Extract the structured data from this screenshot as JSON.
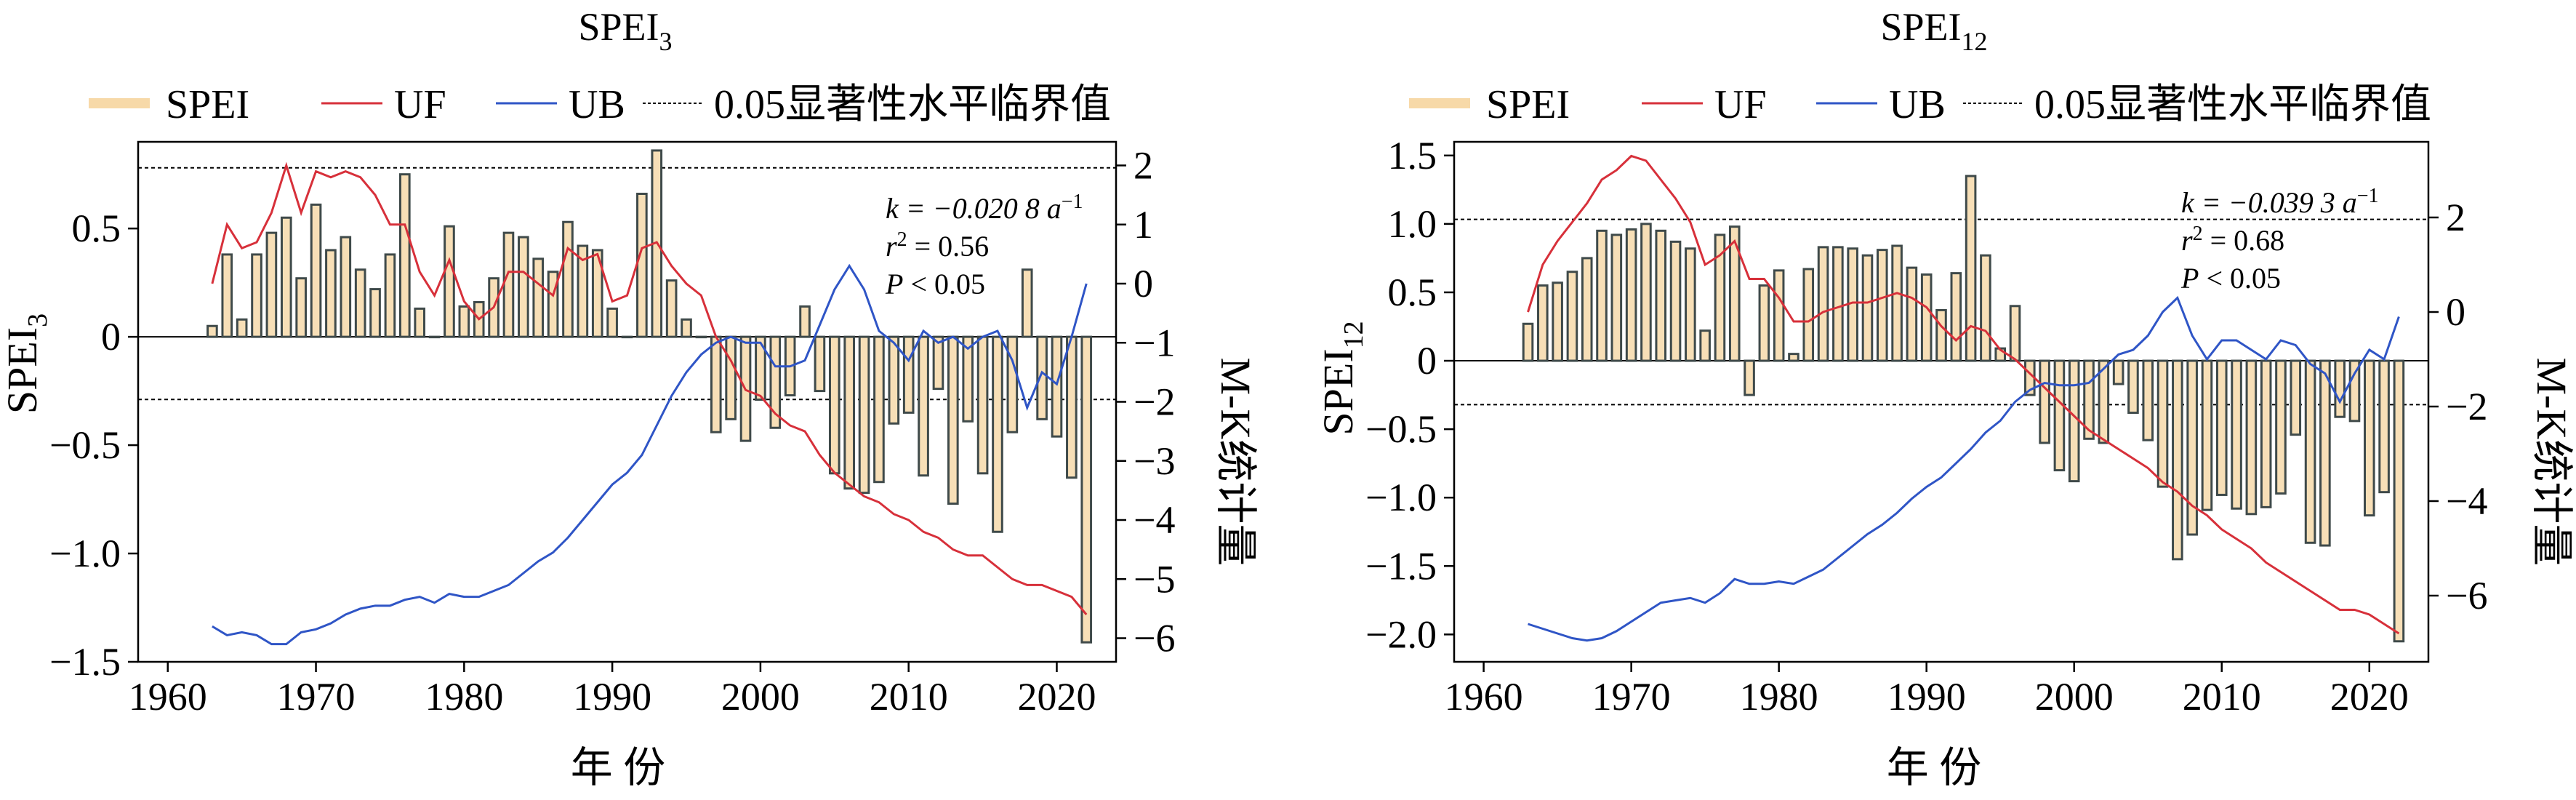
{
  "chart_data": [
    {
      "type": "bar",
      "title_main": "SPEI",
      "title_sub": "3",
      "xlabel": "年 份",
      "ylabel_main": "SPEI",
      "ylabel_sub": "3",
      "ylabel2": "M-K统计量",
      "xlim": [
        1958,
        2024
      ],
      "ylim": [
        -1.5,
        0.9
      ],
      "y2lim": [
        -6.4,
        2.4
      ],
      "xticks": [
        1960,
        1970,
        1980,
        1990,
        2000,
        2010,
        2020
      ],
      "yticks": [
        0.5,
        0,
        -0.5,
        -1.0,
        -1.5
      ],
      "ytick_labels": [
        "0.5",
        "0",
        "−0.5",
        "−1.0",
        "−1.5"
      ],
      "y2ticks": [
        2,
        1,
        0,
        -1,
        -2,
        -3,
        -4,
        -5,
        -6
      ],
      "y2tick_labels": [
        "2",
        "1",
        "0",
        "−1",
        "−2",
        "−3",
        "−4",
        "−5",
        "−6"
      ],
      "critical_values": [
        1.96,
        -1.96
      ],
      "legend": [
        "SPEI",
        "UF",
        "UB",
        "0.05显著性水平临界值"
      ],
      "annotation": {
        "k": "k = −0.020 8 a",
        "k_sup": "−1",
        "r2": "r",
        "r2_sup": "2",
        "r2_val": " = 0.56",
        "p": "P",
        "p_val": " < 0.05"
      },
      "years": [
        1963,
        1964,
        1965,
        1966,
        1967,
        1968,
        1969,
        1970,
        1971,
        1972,
        1973,
        1974,
        1975,
        1976,
        1977,
        1978,
        1979,
        1980,
        1981,
        1982,
        1983,
        1984,
        1985,
        1986,
        1987,
        1988,
        1989,
        1990,
        1991,
        1992,
        1993,
        1994,
        1995,
        1996,
        1997,
        1998,
        1999,
        2000,
        2001,
        2002,
        2003,
        2004,
        2005,
        2006,
        2007,
        2008,
        2009,
        2010,
        2011,
        2012,
        2013,
        2014,
        2015,
        2016,
        2017,
        2018,
        2019,
        2020,
        2021,
        2022
      ],
      "spei": [
        0.05,
        0.38,
        0.08,
        0.38,
        0.48,
        0.55,
        0.27,
        0.61,
        0.4,
        0.46,
        0.31,
        0.22,
        0.38,
        0.75,
        0.13,
        0.0,
        0.51,
        0.14,
        0.16,
        0.27,
        0.48,
        0.46,
        0.36,
        0.3,
        0.53,
        0.42,
        0.4,
        0.13,
        0.0,
        0.66,
        0.86,
        0.26,
        0.08,
        0.0,
        -0.44,
        -0.38,
        -0.48,
        -0.29,
        -0.42,
        -0.27,
        0.14,
        -0.25,
        -0.63,
        -0.7,
        -0.72,
        -0.67,
        -0.4,
        -0.35,
        -0.64,
        -0.24,
        -0.77,
        -0.39,
        -0.63,
        -0.9,
        -0.44,
        0.31,
        -0.38,
        -0.46,
        -0.65,
        -1.41
      ],
      "uf": [
        0.0,
        1.0,
        0.6,
        0.7,
        1.2,
        2.0,
        1.2,
        1.9,
        1.8,
        1.9,
        1.8,
        1.5,
        1.0,
        1.0,
        0.2,
        -0.2,
        0.4,
        -0.3,
        -0.6,
        -0.4,
        0.2,
        0.2,
        0.0,
        -0.2,
        0.6,
        0.4,
        0.5,
        -0.3,
        -0.2,
        0.6,
        0.7,
        0.3,
        0.0,
        -0.2,
        -0.9,
        -1.3,
        -1.8,
        -1.9,
        -2.2,
        -2.4,
        -2.5,
        -2.9,
        -3.2,
        -3.4,
        -3.6,
        -3.7,
        -3.9,
        -4.0,
        -4.2,
        -4.3,
        -4.5,
        -4.6,
        -4.6,
        -4.8,
        -5.0,
        -5.1,
        -5.1,
        -5.2,
        -5.3,
        -5.6
      ],
      "ub": [
        -5.8,
        -5.95,
        -5.9,
        -5.95,
        -6.1,
        -6.1,
        -5.9,
        -5.85,
        -5.75,
        -5.6,
        -5.5,
        -5.45,
        -5.45,
        -5.35,
        -5.3,
        -5.4,
        -5.25,
        -5.3,
        -5.3,
        -5.2,
        -5.1,
        -4.9,
        -4.7,
        -4.55,
        -4.3,
        -4.0,
        -3.7,
        -3.4,
        -3.2,
        -2.9,
        -2.4,
        -1.9,
        -1.5,
        -1.2,
        -1.0,
        -0.9,
        -1.0,
        -1.0,
        -1.4,
        -1.4,
        -1.3,
        -0.7,
        -0.1,
        0.3,
        -0.1,
        -0.8,
        -1.0,
        -1.3,
        -0.8,
        -1.0,
        -0.9,
        -1.1,
        -0.9,
        -0.8,
        -1.3,
        -2.1,
        -1.5,
        -1.7,
        -0.9,
        0.0
      ]
    },
    {
      "type": "bar",
      "title_main": "SPEI",
      "title_sub": "12",
      "xlabel": "年 份",
      "ylabel_main": "SPEI",
      "ylabel_sub": "12",
      "ylabel2": "M-K统计量",
      "xlim": [
        1958,
        2024
      ],
      "ylim": [
        -2.2,
        1.6
      ],
      "y2lim": [
        -7.4,
        3.6
      ],
      "xticks": [
        1960,
        1970,
        1980,
        1990,
        2000,
        2010,
        2020
      ],
      "yticks": [
        1.5,
        1.0,
        0.5,
        0,
        -0.5,
        -1.0,
        -1.5,
        -2.0
      ],
      "ytick_labels": [
        "1.5",
        "1.0",
        "0.5",
        "0",
        "−0.5",
        "−1.0",
        "−1.5",
        "−2.0"
      ],
      "y2ticks": [
        2,
        0,
        -2,
        -4,
        -6
      ],
      "y2tick_labels": [
        "2",
        "0",
        "−2",
        "−4",
        "−6"
      ],
      "critical_values": [
        1.96,
        -1.96
      ],
      "legend": [
        "SPEI",
        "UF",
        "UB",
        "0.05显著性水平临界值"
      ],
      "annotation": {
        "k": "k = −0.039 3 a",
        "k_sup": "−1",
        "r2": "r",
        "r2_sup": "2",
        "r2_val": " = 0.68",
        "p": "P",
        "p_val": " < 0.05"
      },
      "years": [
        1963,
        1964,
        1965,
        1966,
        1967,
        1968,
        1969,
        1970,
        1971,
        1972,
        1973,
        1974,
        1975,
        1976,
        1977,
        1978,
        1979,
        1980,
        1981,
        1982,
        1983,
        1984,
        1985,
        1986,
        1987,
        1988,
        1989,
        1990,
        1991,
        1992,
        1993,
        1994,
        1995,
        1996,
        1997,
        1998,
        1999,
        2000,
        2001,
        2002,
        2003,
        2004,
        2005,
        2006,
        2007,
        2008,
        2009,
        2010,
        2011,
        2012,
        2013,
        2014,
        2015,
        2016,
        2017,
        2018,
        2019,
        2020,
        2021,
        2022
      ],
      "spei": [
        0.27,
        0.55,
        0.57,
        0.65,
        0.75,
        0.95,
        0.92,
        0.96,
        1.0,
        0.95,
        0.87,
        0.82,
        0.22,
        0.92,
        0.98,
        -0.25,
        0.55,
        0.66,
        0.05,
        0.67,
        0.83,
        0.83,
        0.82,
        0.77,
        0.81,
        0.84,
        0.68,
        0.63,
        0.37,
        0.64,
        1.35,
        0.77,
        0.09,
        0.4,
        -0.25,
        -0.6,
        -0.8,
        -0.88,
        -0.57,
        -0.6,
        -0.17,
        -0.38,
        -0.58,
        -0.92,
        -1.45,
        -1.27,
        -1.09,
        -0.98,
        -1.08,
        -1.12,
        -1.07,
        -0.97,
        -0.54,
        -1.33,
        -1.35,
        -0.41,
        -0.44,
        -1.13,
        -0.96,
        -2.05
      ],
      "uf": [
        0.0,
        1.0,
        1.5,
        1.9,
        2.3,
        2.8,
        3.0,
        3.3,
        3.2,
        2.8,
        2.4,
        1.9,
        1.0,
        1.2,
        1.5,
        0.7,
        0.7,
        0.3,
        -0.2,
        -0.2,
        0.0,
        0.1,
        0.2,
        0.2,
        0.3,
        0.4,
        0.3,
        0.1,
        -0.3,
        -0.6,
        -0.3,
        -0.4,
        -0.8,
        -1.0,
        -1.3,
        -1.6,
        -1.9,
        -2.2,
        -2.5,
        -2.7,
        -2.9,
        -3.1,
        -3.3,
        -3.6,
        -3.8,
        -4.1,
        -4.3,
        -4.6,
        -4.8,
        -5.0,
        -5.3,
        -5.5,
        -5.7,
        -5.9,
        -6.1,
        -6.3,
        -6.3,
        -6.4,
        -6.6,
        -6.8
      ],
      "ub": [
        -6.6,
        -6.7,
        -6.8,
        -6.9,
        -6.95,
        -6.9,
        -6.75,
        -6.55,
        -6.35,
        -6.15,
        -6.1,
        -6.05,
        -6.15,
        -5.95,
        -5.65,
        -5.75,
        -5.75,
        -5.7,
        -5.75,
        -5.6,
        -5.45,
        -5.2,
        -4.95,
        -4.7,
        -4.5,
        -4.25,
        -3.95,
        -3.7,
        -3.5,
        -3.2,
        -2.9,
        -2.55,
        -2.3,
        -1.9,
        -1.65,
        -1.5,
        -1.55,
        -1.55,
        -1.5,
        -1.2,
        -0.9,
        -0.8,
        -0.5,
        0.0,
        0.3,
        -0.5,
        -1.0,
        -0.6,
        -0.6,
        -0.8,
        -1.0,
        -0.6,
        -0.7,
        -1.1,
        -1.3,
        -1.9,
        -1.3,
        -0.8,
        -1.0,
        -0.1
      ]
    }
  ]
}
